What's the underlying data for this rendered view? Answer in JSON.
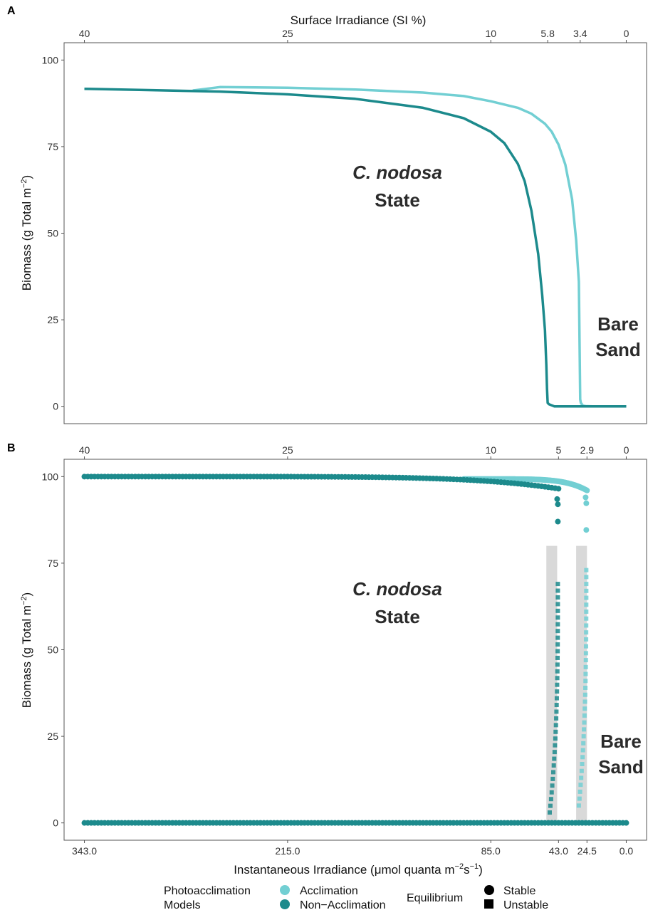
{
  "chart_data": [
    {
      "panel": "A",
      "type": "line",
      "top_axis": {
        "label": "Surface Irradiance (SI %)",
        "ticks": [
          "40",
          "25",
          "10",
          "5.8",
          "3.4",
          "0"
        ],
        "tick_x": [
          40,
          25,
          10,
          5.8,
          3.4,
          0
        ]
      },
      "ylabel": "Biomass (g Total m^-2)",
      "ylabel_main": "Biomass (g Total  m",
      "ylabel_sup": "−2",
      "ylabel_end": ")",
      "yticks": [
        "0",
        "25",
        "50",
        "75",
        "100"
      ],
      "ylim": [
        -5,
        105
      ],
      "xlim": [
        41.5,
        -1.5
      ],
      "region_labels": {
        "left_line1": "C. nodosa",
        "left_line2": "State",
        "right_line1": "Bare",
        "right_line2": "Sand"
      },
      "series": [
        {
          "name": "Acclimation",
          "color": "#72cfd3",
          "x": [
            32,
            30,
            25,
            20,
            15,
            12,
            10,
            8,
            7,
            6,
            5.5,
            5,
            4.5,
            4,
            3.7,
            3.5,
            3.45,
            3.4,
            3.35,
            3.2,
            3.0,
            2.5,
            2.0,
            1.0,
            0
          ],
          "y": [
            91.2,
            92.2,
            92.0,
            91.5,
            90.6,
            89.6,
            88.1,
            86.2,
            84.5,
            81.6,
            79.3,
            75.6,
            69.8,
            59.8,
            48.0,
            36.0,
            20.0,
            2.0,
            1.0,
            0.2,
            0.05,
            0.0,
            0.0,
            0.0,
            0.0
          ]
        },
        {
          "name": "Non-Acclimation",
          "color": "#1c8a8c",
          "x": [
            40,
            35,
            30,
            25,
            20,
            15,
            12,
            10,
            9,
            8,
            7.5,
            7,
            6.5,
            6.2,
            6.0,
            5.9,
            5.85,
            5.8,
            5.7,
            5.3,
            5.0,
            4.0,
            3.0,
            2.0,
            1.0,
            0
          ],
          "y": [
            91.7,
            91.3,
            90.9,
            90.1,
            88.8,
            86.2,
            83.2,
            79.3,
            76.0,
            70.0,
            65.0,
            56.5,
            44.0,
            32.0,
            22.0,
            12.0,
            5.0,
            1.0,
            0.6,
            0.0,
            0.0,
            0.0,
            0.0,
            0.0,
            0.0,
            0.0
          ]
        }
      ]
    },
    {
      "panel": "B",
      "type": "scatter",
      "top_axis": {
        "ticks": [
          "40",
          "25",
          "10",
          "5",
          "2.9",
          "0"
        ],
        "tick_x": [
          40,
          25,
          10,
          5,
          2.9,
          0
        ]
      },
      "bottom_axis": {
        "label": "Instantaneous Irradiance (μmol quanta m^-2 s^-1)",
        "ticks": [
          "343.0",
          "215.0",
          "85.0",
          "43.0",
          "24.5",
          "0.0"
        ],
        "tick_x": [
          40,
          25,
          10,
          5,
          2.9,
          0
        ]
      },
      "xlabel_main": "Instantaneous Irradiance (",
      "xlabel_mu": "μ",
      "xlabel_mid": "mol quanta m",
      "xlabel_sup1": "−2",
      "xlabel_s": "s",
      "xlabel_sup2": "−1",
      "xlabel_end": ")",
      "ylabel_main": "Biomass (g Total  m",
      "ylabel_sup": "−2",
      "ylabel_end": ")",
      "yticks": [
        "0",
        "25",
        "50",
        "75",
        "100"
      ],
      "ylim": [
        -5,
        105
      ],
      "xlim": [
        41.5,
        -1.5
      ],
      "region_labels": {
        "left_line1": "C. nodosa",
        "left_line2": "State",
        "right_line1": "Bare",
        "right_line2": "Sand"
      },
      "bistable_bands": [
        {
          "x0": 5.9,
          "x1": 5.1,
          "y0": 0,
          "y1": 80
        },
        {
          "x0": 3.7,
          "x1": 2.9,
          "y0": 0,
          "y1": 80
        }
      ],
      "stable_upper": [
        {
          "name": "Acclimation",
          "color": "#72cfd3",
          "x_start": 12,
          "x_end": 2.9,
          "y_start": 99.3,
          "y_end": 96.0,
          "tail": [
            [
              3.0,
              94.0
            ],
            [
              2.95,
              92.3
            ],
            [
              2.95,
              84.6
            ]
          ]
        },
        {
          "name": "Non-Acclimation",
          "color": "#1c8a8c",
          "x_start": 40,
          "x_end": 5.0,
          "y_start": 100,
          "y_end": 96.5,
          "tail": [
            [
              5.1,
              93.5
            ],
            [
              5.05,
              92.0
            ],
            [
              5.05,
              87.0
            ]
          ]
        }
      ],
      "unstable": [
        {
          "name": "Acclimation",
          "color": "#72cfd3",
          "x_top": 2.95,
          "y_top": 73,
          "x_bottom": 3.5,
          "y_bottom": 5
        },
        {
          "name": "Non-Acclimation",
          "color": "#1c8a8c",
          "x_top": 5.05,
          "y_top": 69,
          "x_bottom": 5.65,
          "y_bottom": 3
        }
      ],
      "stable_bare": {
        "color": "#1c8a8c",
        "x_start": 40,
        "x_end": 0,
        "y": 0
      }
    }
  ],
  "legend": {
    "models_title_line1": "Photoacclimation",
    "models_title_line2": "Models",
    "model_items": [
      {
        "label": "Acclimation",
        "color": "#72cfd3"
      },
      {
        "label": "Non−Acclimation",
        "color": "#1c8a8c"
      }
    ],
    "equilibrium_title": "Equilibrium",
    "equilibrium_items": [
      {
        "label": "Stable",
        "shape": "circle"
      },
      {
        "label": "Unstable",
        "shape": "square"
      }
    ]
  }
}
